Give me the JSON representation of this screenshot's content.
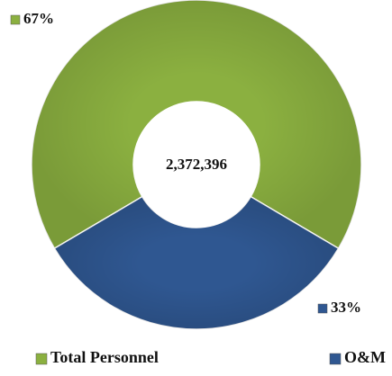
{
  "chart_data": {
    "type": "pie",
    "categories": [
      "Total Personnel",
      "O&M"
    ],
    "values": [
      67,
      33
    ],
    "value_labels": [
      "67%",
      "33%"
    ],
    "colors": [
      "#8bb040",
      "#2f5791"
    ],
    "center_label": "2,372,396",
    "legend": "bottom"
  }
}
